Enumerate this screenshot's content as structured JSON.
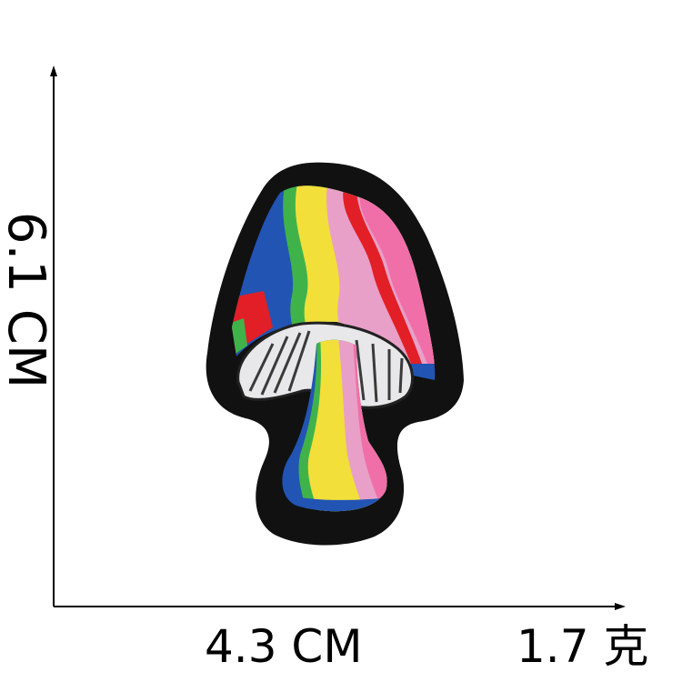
{
  "product": {
    "height_label": "6.1 CM",
    "width_label": "4.3 CM",
    "weight_label": "1.7 克"
  },
  "colors": {
    "border": "#111111",
    "rainbow": [
      "#e21f26",
      "#f06fa8",
      "#e8a0c8",
      "#f2df3a",
      "#3fb34a",
      "#2254b4"
    ],
    "gills": "#e8e8ea",
    "gill_lines": "#3a3a3a"
  }
}
